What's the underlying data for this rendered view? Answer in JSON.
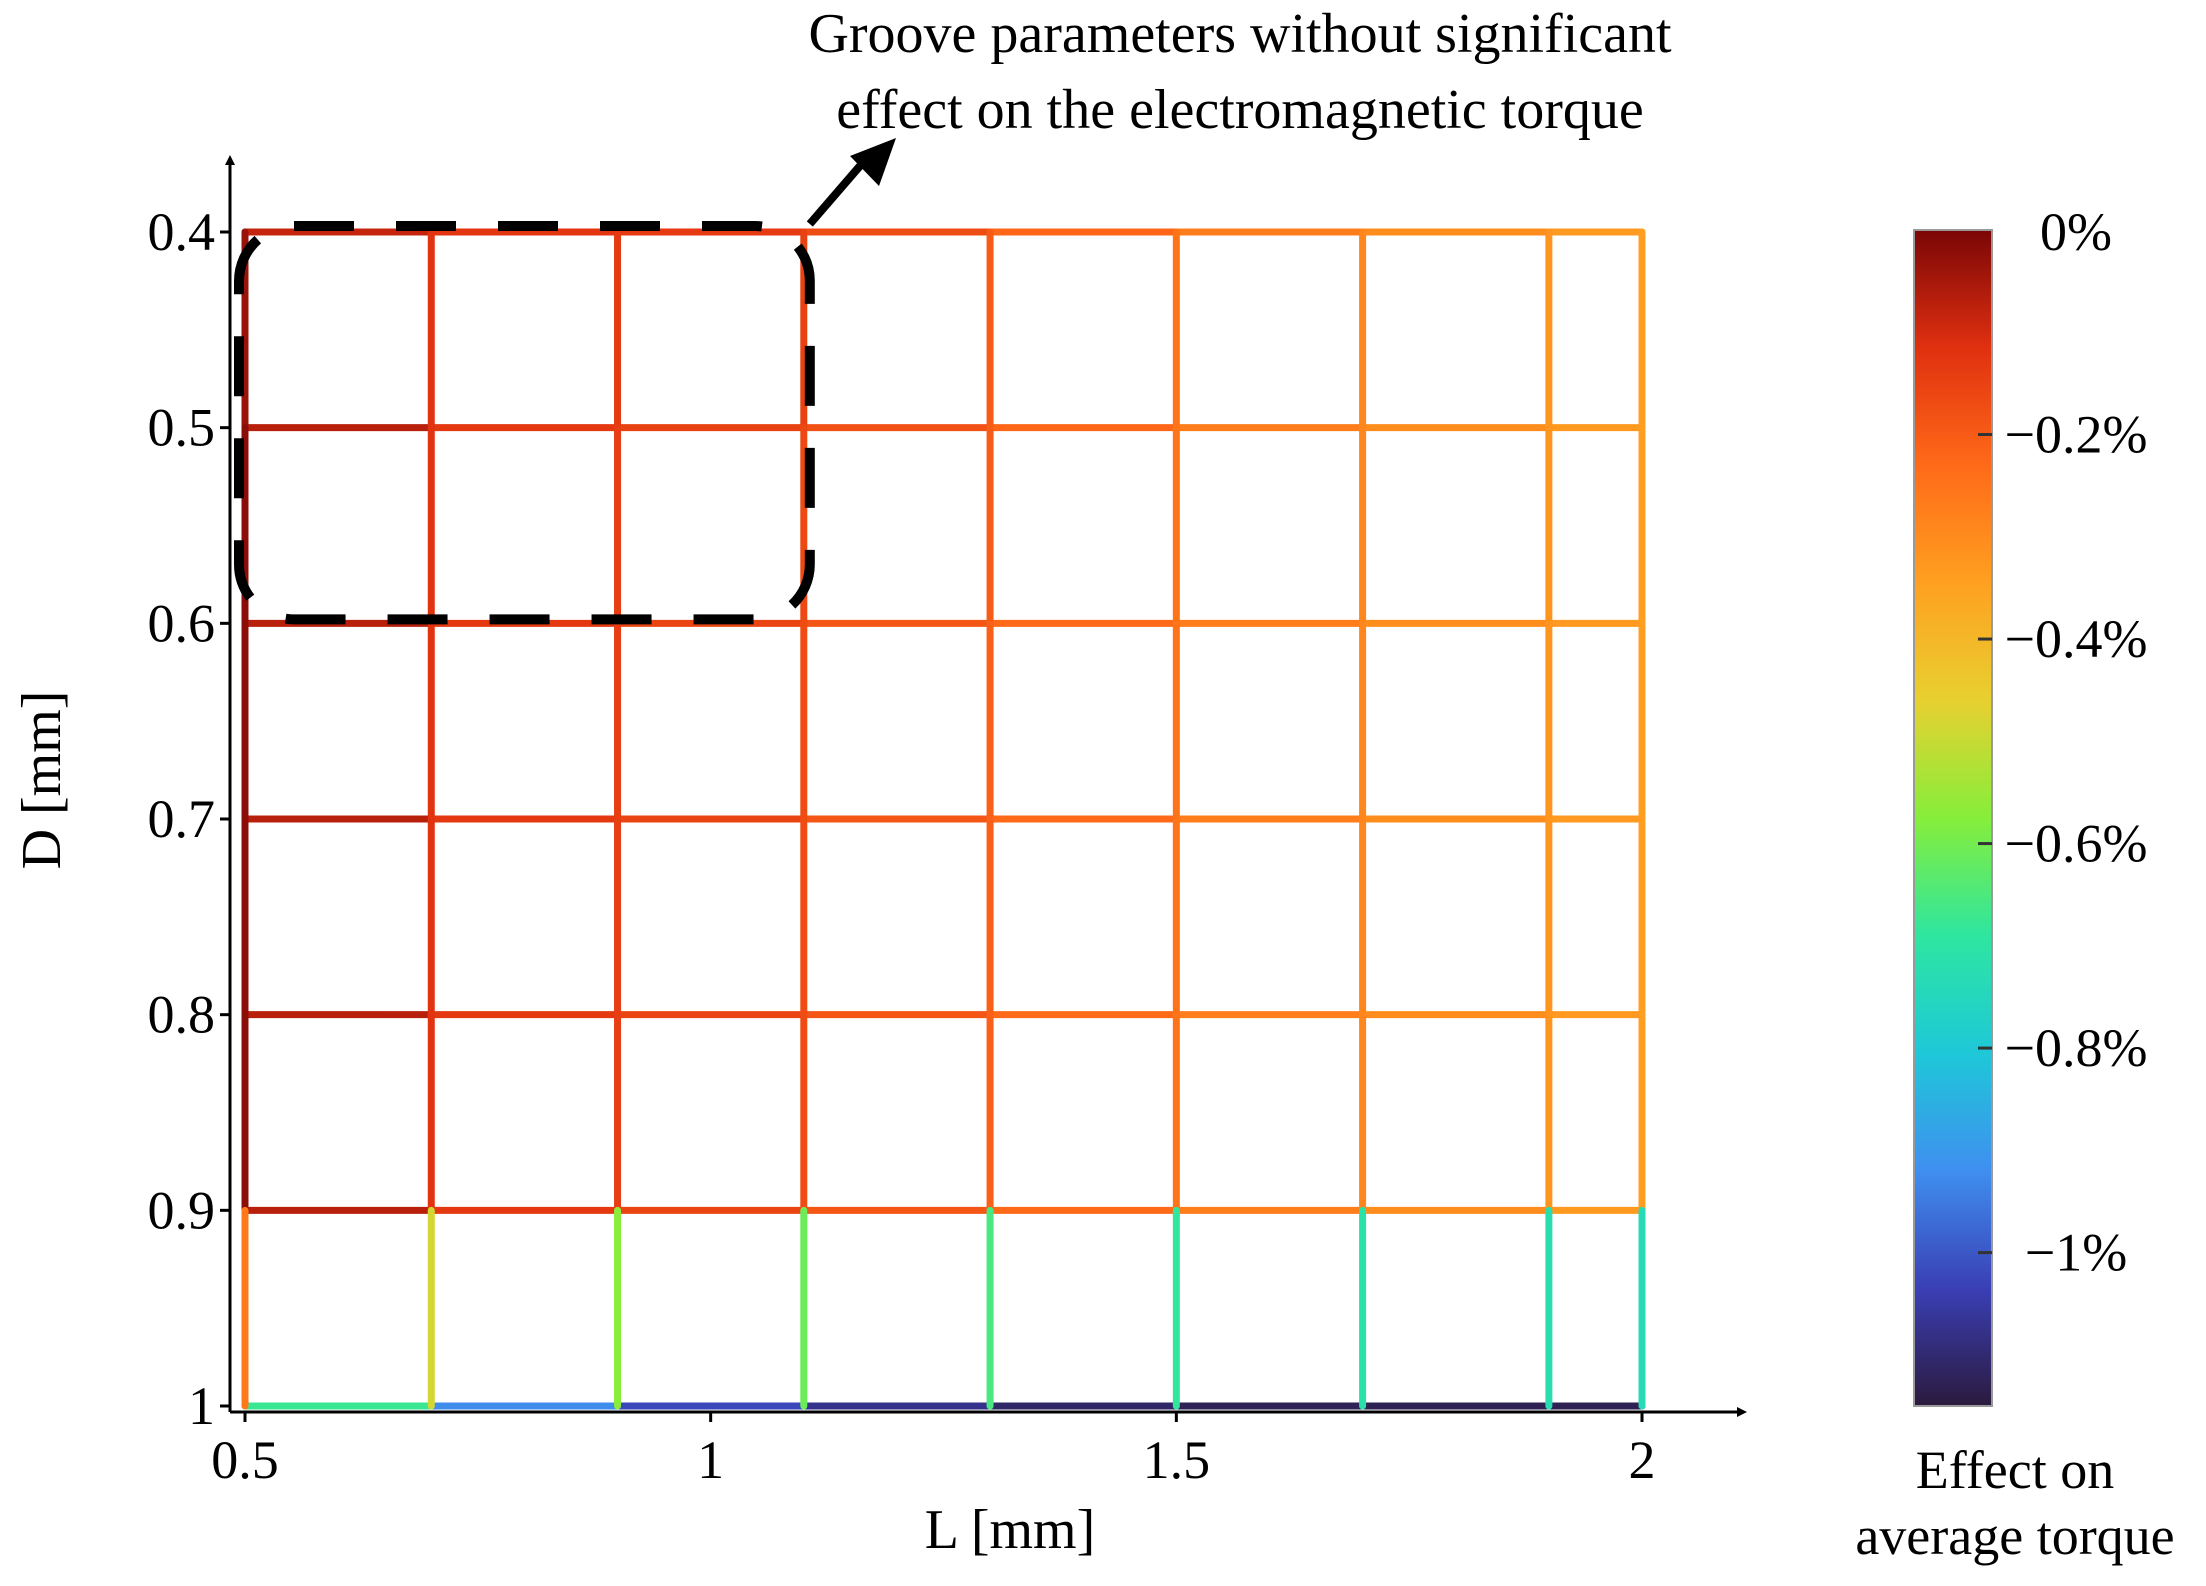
{
  "chart_data": {
    "type": "heatmap",
    "title": "",
    "xlabel": "L [mm]",
    "ylabel": "D [mm]",
    "x": [
      0.5,
      0.7,
      0.9,
      1.1,
      1.3,
      1.5,
      1.7,
      1.9,
      2.0
    ],
    "y": [
      0.4,
      0.5,
      0.6,
      0.7,
      0.8,
      0.9,
      1.0
    ],
    "xlim": [
      0.5,
      2.0
    ],
    "ylim": [
      0.4,
      1.0
    ],
    "y_inverted": true,
    "xticks": [
      0.5,
      1,
      1.5,
      2
    ],
    "xtick_labels": [
      "0.5",
      "1",
      "1.5",
      "2"
    ],
    "yticks": [
      0.4,
      0.5,
      0.6,
      0.7,
      0.8,
      0.9,
      1.0
    ],
    "ytick_labels": [
      "0.4",
      "0.5",
      "0.6",
      "0.7",
      "0.8",
      "0.9",
      "1"
    ],
    "grid": "mesh",
    "values_percent": [
      [
        -0.05,
        -0.12,
        -0.13,
        -0.14,
        -0.2,
        -0.25,
        -0.29,
        -0.32,
        -0.34
      ],
      [
        -0.02,
        -0.12,
        -0.14,
        -0.16,
        -0.2,
        -0.25,
        -0.29,
        -0.32,
        -0.34
      ],
      [
        -0.02,
        -0.12,
        -0.14,
        -0.17,
        -0.21,
        -0.25,
        -0.29,
        -0.32,
        -0.34
      ],
      [
        -0.02,
        -0.12,
        -0.14,
        -0.17,
        -0.21,
        -0.25,
        -0.29,
        -0.32,
        -0.34
      ],
      [
        -0.02,
        -0.12,
        -0.14,
        -0.17,
        -0.21,
        -0.25,
        -0.29,
        -0.32,
        -0.34
      ],
      [
        -0.02,
        -0.12,
        -0.14,
        -0.17,
        -0.21,
        -0.25,
        -0.29,
        -0.32,
        -0.34
      ],
      [
        -0.5,
        -0.85,
        -1.0,
        -1.05,
        -1.1,
        -1.12,
        -1.13,
        -1.13,
        -1.13
      ]
    ],
    "colorbar": {
      "label_lines": [
        "Effect on",
        "average torque"
      ],
      "range_percent": [
        -1.15,
        0
      ],
      "ticks": [
        0,
        -0.2,
        -0.4,
        -0.6,
        -0.8,
        -1
      ],
      "tick_labels": [
        "0%",
        "−0.2%",
        "−0.4%",
        "−0.6%",
        "−0.8%",
        "−1%"
      ],
      "colors": [
        "#2b1a3d",
        "#3a3fb5",
        "#3f8ff0",
        "#1ec8d8",
        "#2ee6a0",
        "#86ee3a",
        "#e8d030",
        "#ffa020",
        "#ff6a18",
        "#e03010",
        "#7a0606"
      ]
    },
    "annotation": {
      "text_lines": [
        "Groove parameters without significant",
        "effect on the electromagnetic torque"
      ],
      "region": {
        "x": [
          0.5,
          1.1
        ],
        "y": [
          0.4,
          0.6
        ]
      }
    }
  }
}
